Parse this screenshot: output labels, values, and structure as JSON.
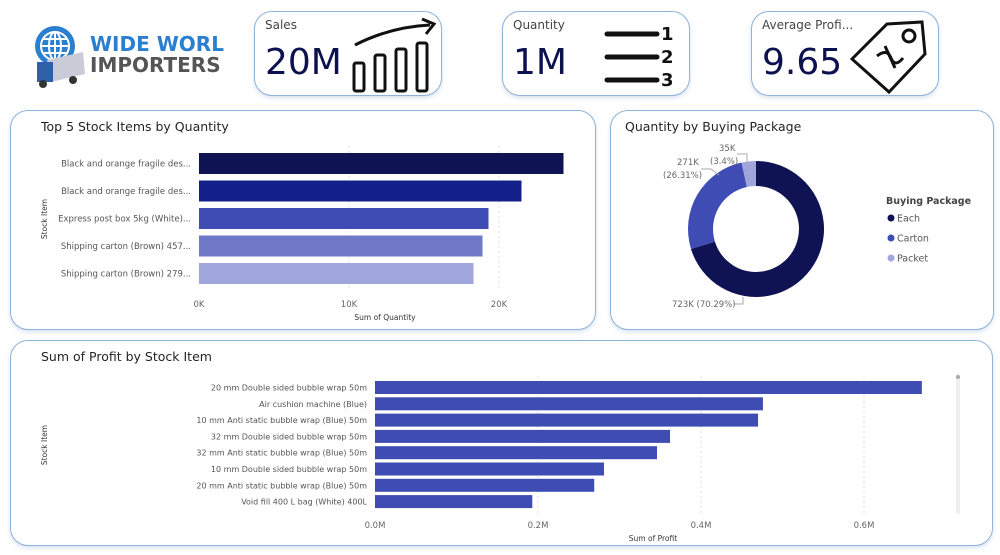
{
  "logo": {
    "line1": "WIDE WORLD",
    "line2": "IMPORTERS"
  },
  "kpis": [
    {
      "label": "Sales",
      "value": "20M",
      "icon": "bar-chart-growth-icon"
    },
    {
      "label": "Quantity",
      "value": "1M",
      "icon": "numbered-list-icon"
    },
    {
      "label": "Average Profi...",
      "value": "9.65",
      "icon": "price-tag-icon"
    }
  ],
  "colors": {
    "each": "#0f1253",
    "carton": "#3f4cb3",
    "packet": "#a0a6db",
    "bar": "#3f4cb3",
    "border": "#8fb3d9"
  },
  "chart_data": [
    {
      "type": "bar",
      "orientation": "horizontal",
      "title": "Top 5 Stock Items by Quantity",
      "xlabel": "Sum of Quantity",
      "ylabel": "Stock Item",
      "categories": [
        "Black and orange fragile des...",
        "Black and orange fragile des...",
        "Express post box 5kg (White)...",
        "Shipping carton (Brown) 457...",
        "Shipping carton (Brown) 279..."
      ],
      "values": [
        24300,
        21500,
        19300,
        18900,
        18300
      ],
      "bar_colors": [
        "#0f1253",
        "#14208a",
        "#3f4cb3",
        "#7079c7",
        "#a0a6db"
      ],
      "xticks": [
        "0K",
        "10K",
        "20K"
      ],
      "xtick_values": [
        0,
        10000,
        20000
      ],
      "xlim": [
        0,
        24500
      ],
      "grid": true
    },
    {
      "type": "pie",
      "donut": true,
      "title": "Quantity by Buying Package",
      "legend_title": "Buying Package",
      "legend_position": "right",
      "categories": [
        "Each",
        "Carton",
        "Packet"
      ],
      "values": [
        723000,
        271000,
        35000
      ],
      "percents": [
        70.29,
        26.31,
        3.4
      ],
      "labels": [
        "723K (70.29%)",
        "271K",
        "(26.31%)",
        "35K",
        "(3.4%)"
      ]
    },
    {
      "type": "bar",
      "orientation": "horizontal",
      "title": "Sum of Profit by Stock Item",
      "xlabel": "Sum of Profit",
      "ylabel": "Stock Item",
      "categories": [
        "20 mm Double sided bubble wrap 50m",
        "Air cushion machine (Blue)",
        "10 mm Anti static bubble wrap (Blue) 50m",
        "32 mm Double sided bubble wrap 50m",
        "32 mm Anti static bubble wrap (Blue) 50m",
        "10 mm Double sided bubble wrap 50m",
        "20 mm Anti static bubble wrap (Blue) 50m",
        "Void fill 400 L bag (White) 400L"
      ],
      "values": [
        671000,
        476000,
        470000,
        362000,
        346000,
        281000,
        269000,
        193000
      ],
      "xticks": [
        "0.0M",
        "0.2M",
        "0.4M",
        "0.6M"
      ],
      "xtick_values": [
        0,
        200000,
        400000,
        600000
      ],
      "xlim": [
        0,
        720000
      ],
      "grid": true
    }
  ]
}
